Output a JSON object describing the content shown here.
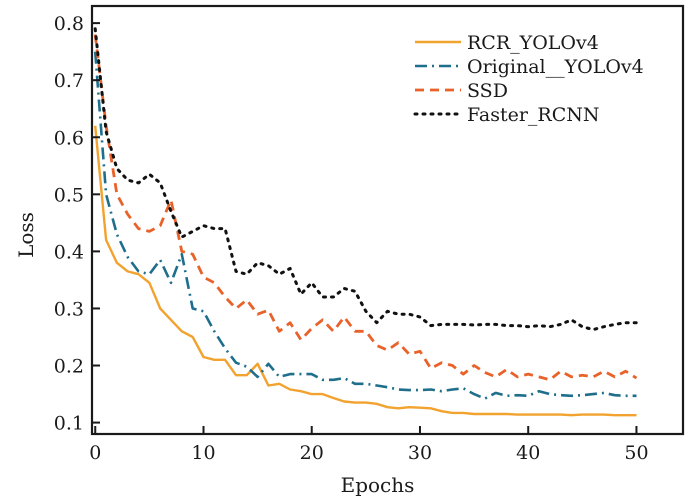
{
  "chart_data": {
    "type": "line",
    "title": "",
    "xlabel": "Epochs",
    "ylabel": "Loss",
    "xlim": [
      -0.3,
      54.3
    ],
    "ylim": [
      0.08,
      0.83
    ],
    "xticks": [
      0,
      10,
      20,
      30,
      40,
      50
    ],
    "xtick_labels": [
      "0",
      "10",
      "20",
      "30",
      "40",
      "50"
    ],
    "yticks": [
      0.1,
      0.2,
      0.3,
      0.4,
      0.5,
      0.6,
      0.7,
      0.8
    ],
    "ytick_labels": [
      "0.1",
      "0.2",
      "0.3",
      "0.4",
      "0.5",
      "0.6",
      "0.7",
      "0.8"
    ],
    "grid": false,
    "legend_position": "top-right",
    "x": [
      0,
      1,
      2,
      3,
      4,
      5,
      6,
      7,
      8,
      9,
      10,
      11,
      12,
      13,
      14,
      15,
      16,
      17,
      18,
      19,
      20,
      21,
      22,
      23,
      24,
      25,
      26,
      27,
      28,
      29,
      30,
      31,
      32,
      33,
      34,
      35,
      36,
      37,
      38,
      39,
      40,
      41,
      42,
      43,
      44,
      45,
      46,
      47,
      48,
      49,
      50
    ],
    "series": [
      {
        "name": "RCR_YOLOv4",
        "color": "#f2a22e",
        "style": "solid",
        "values": [
          0.62,
          0.42,
          0.38,
          0.365,
          0.36,
          0.345,
          0.3,
          0.28,
          0.26,
          0.25,
          0.215,
          0.21,
          0.21,
          0.183,
          0.183,
          0.203,
          0.165,
          0.168,
          0.158,
          0.155,
          0.15,
          0.15,
          0.143,
          0.137,
          0.135,
          0.135,
          0.133,
          0.127,
          0.125,
          0.127,
          0.126,
          0.125,
          0.12,
          0.117,
          0.117,
          0.115,
          0.115,
          0.115,
          0.115,
          0.114,
          0.114,
          0.114,
          0.114,
          0.114,
          0.113,
          0.114,
          0.114,
          0.114,
          0.113,
          0.113,
          0.113
        ]
      },
      {
        "name": "Original__YOLOv4",
        "color": "#1f6e8c",
        "style": "dashdot",
        "values": [
          0.75,
          0.5,
          0.43,
          0.39,
          0.365,
          0.36,
          0.385,
          0.345,
          0.395,
          0.3,
          0.295,
          0.26,
          0.23,
          0.205,
          0.198,
          0.18,
          0.203,
          0.18,
          0.185,
          0.185,
          0.185,
          0.175,
          0.175,
          0.178,
          0.168,
          0.168,
          0.165,
          0.162,
          0.158,
          0.157,
          0.157,
          0.158,
          0.155,
          0.158,
          0.16,
          0.15,
          0.142,
          0.152,
          0.147,
          0.148,
          0.147,
          0.155,
          0.15,
          0.148,
          0.147,
          0.148,
          0.15,
          0.152,
          0.148,
          0.147,
          0.147
        ]
      },
      {
        "name": "SSD",
        "color": "#e8622a",
        "style": "dashed",
        "values": [
          0.78,
          0.62,
          0.5,
          0.465,
          0.44,
          0.435,
          0.445,
          0.49,
          0.4,
          0.395,
          0.355,
          0.345,
          0.32,
          0.3,
          0.315,
          0.29,
          0.297,
          0.26,
          0.275,
          0.245,
          0.265,
          0.28,
          0.26,
          0.285,
          0.26,
          0.26,
          0.235,
          0.227,
          0.24,
          0.22,
          0.225,
          0.195,
          0.205,
          0.2,
          0.185,
          0.2,
          0.188,
          0.18,
          0.193,
          0.18,
          0.185,
          0.18,
          0.175,
          0.19,
          0.18,
          0.183,
          0.18,
          0.19,
          0.18,
          0.19,
          0.178
        ]
      },
      {
        "name": "Faster_RCNN",
        "color": "#111111",
        "style": "dotted",
        "values": [
          0.79,
          0.61,
          0.545,
          0.525,
          0.52,
          0.535,
          0.52,
          0.47,
          0.425,
          0.435,
          0.445,
          0.44,
          0.44,
          0.365,
          0.36,
          0.38,
          0.375,
          0.36,
          0.37,
          0.325,
          0.345,
          0.32,
          0.32,
          0.335,
          0.33,
          0.295,
          0.275,
          0.295,
          0.29,
          0.29,
          0.285,
          0.27,
          0.272,
          0.272,
          0.272,
          0.271,
          0.272,
          0.272,
          0.27,
          0.27,
          0.268,
          0.27,
          0.268,
          0.272,
          0.28,
          0.268,
          0.263,
          0.268,
          0.272,
          0.275,
          0.275
        ]
      }
    ]
  }
}
